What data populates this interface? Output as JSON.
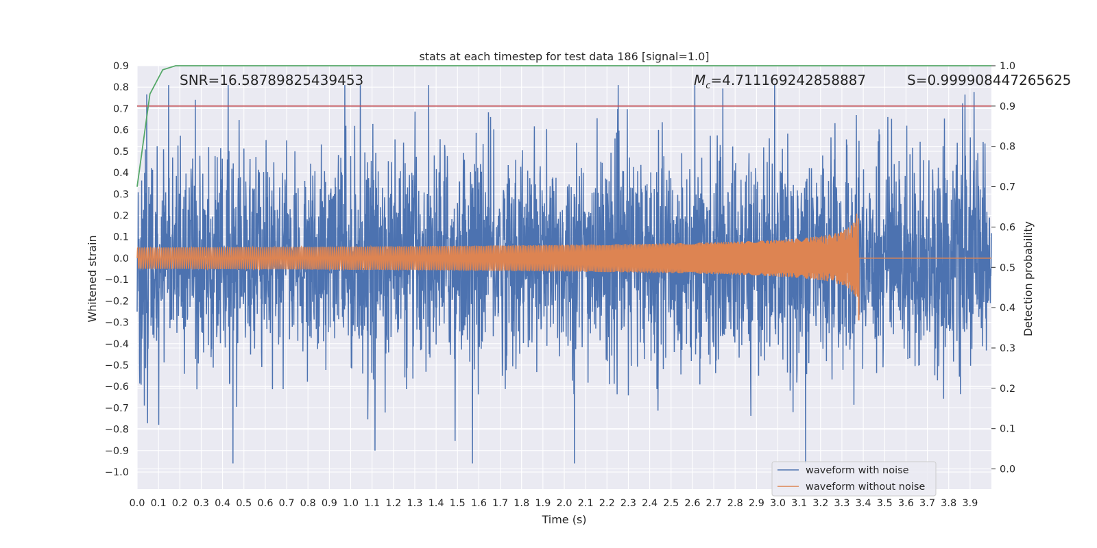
{
  "chart_data": {
    "type": "line",
    "title": "stats at each timestep for test data 186 [signal=1.0]",
    "xlabel": "Time (s)",
    "ylabel": "Whitened strain",
    "y2label": "Detection probability",
    "xlim": [
      0.0,
      4.0
    ],
    "ylim": [
      -1.08,
      0.9
    ],
    "y2lim": [
      -0.05,
      1.0
    ],
    "x_ticks": [
      "0.0",
      "0.1",
      "0.2",
      "0.3",
      "0.4",
      "0.5",
      "0.6",
      "0.7",
      "0.8",
      "0.9",
      "1.0",
      "1.1",
      "1.2",
      "1.3",
      "1.4",
      "1.5",
      "1.6",
      "1.7",
      "1.8",
      "1.9",
      "2.0",
      "2.1",
      "2.2",
      "2.3",
      "2.4",
      "2.5",
      "2.6",
      "2.7",
      "2.8",
      "2.9",
      "3.0",
      "3.1",
      "3.2",
      "3.3",
      "3.4",
      "3.5",
      "3.6",
      "3.7",
      "3.8",
      "3.9"
    ],
    "y_ticks": [
      "0.9",
      "0.8",
      "0.7",
      "0.6",
      "0.5",
      "0.4",
      "0.3",
      "0.2",
      "0.1",
      "0.0",
      "−0.1",
      "−0.2",
      "−0.3",
      "−0.4",
      "−0.5",
      "−0.6",
      "−0.7",
      "−0.8",
      "−0.9",
      "−1.0"
    ],
    "y2_ticks": [
      "1.0",
      "0.9",
      "0.8",
      "0.7",
      "0.6",
      "0.5",
      "0.4",
      "0.3",
      "0.2",
      "0.1",
      "0.0"
    ],
    "grid": true,
    "legend_position": "lower-right",
    "annotations": {
      "snr": "SNR=16.58789825439453",
      "mc_symbol": "M",
      "mc_sub": "c",
      "mc_value": "=4.711169242858887",
      "s": "S=0.999908447265625"
    },
    "series": [
      {
        "name": "waveform with noise",
        "axis": "left",
        "color": "#4c72b0",
        "description": "noisy whitened strain, amplitude roughly between -0.96 and 0.81"
      },
      {
        "name": "waveform without noise",
        "axis": "left",
        "color": "#dd8452",
        "chirp_end_time": 3.38,
        "peak_amplitude": 0.35,
        "start_amplitude": 0.05
      },
      {
        "name": "detection probability",
        "axis": "right",
        "color": "#55a868",
        "x": [
          0.0,
          0.06,
          0.12,
          0.18,
          0.25,
          4.0
        ],
        "values": [
          0.7,
          0.93,
          0.99,
          1.0,
          1.0,
          1.0
        ]
      },
      {
        "name": "detection threshold",
        "axis": "right",
        "color": "#c44e52",
        "x": [
          0.0,
          4.0
        ],
        "values": [
          0.9,
          0.9
        ]
      }
    ]
  }
}
